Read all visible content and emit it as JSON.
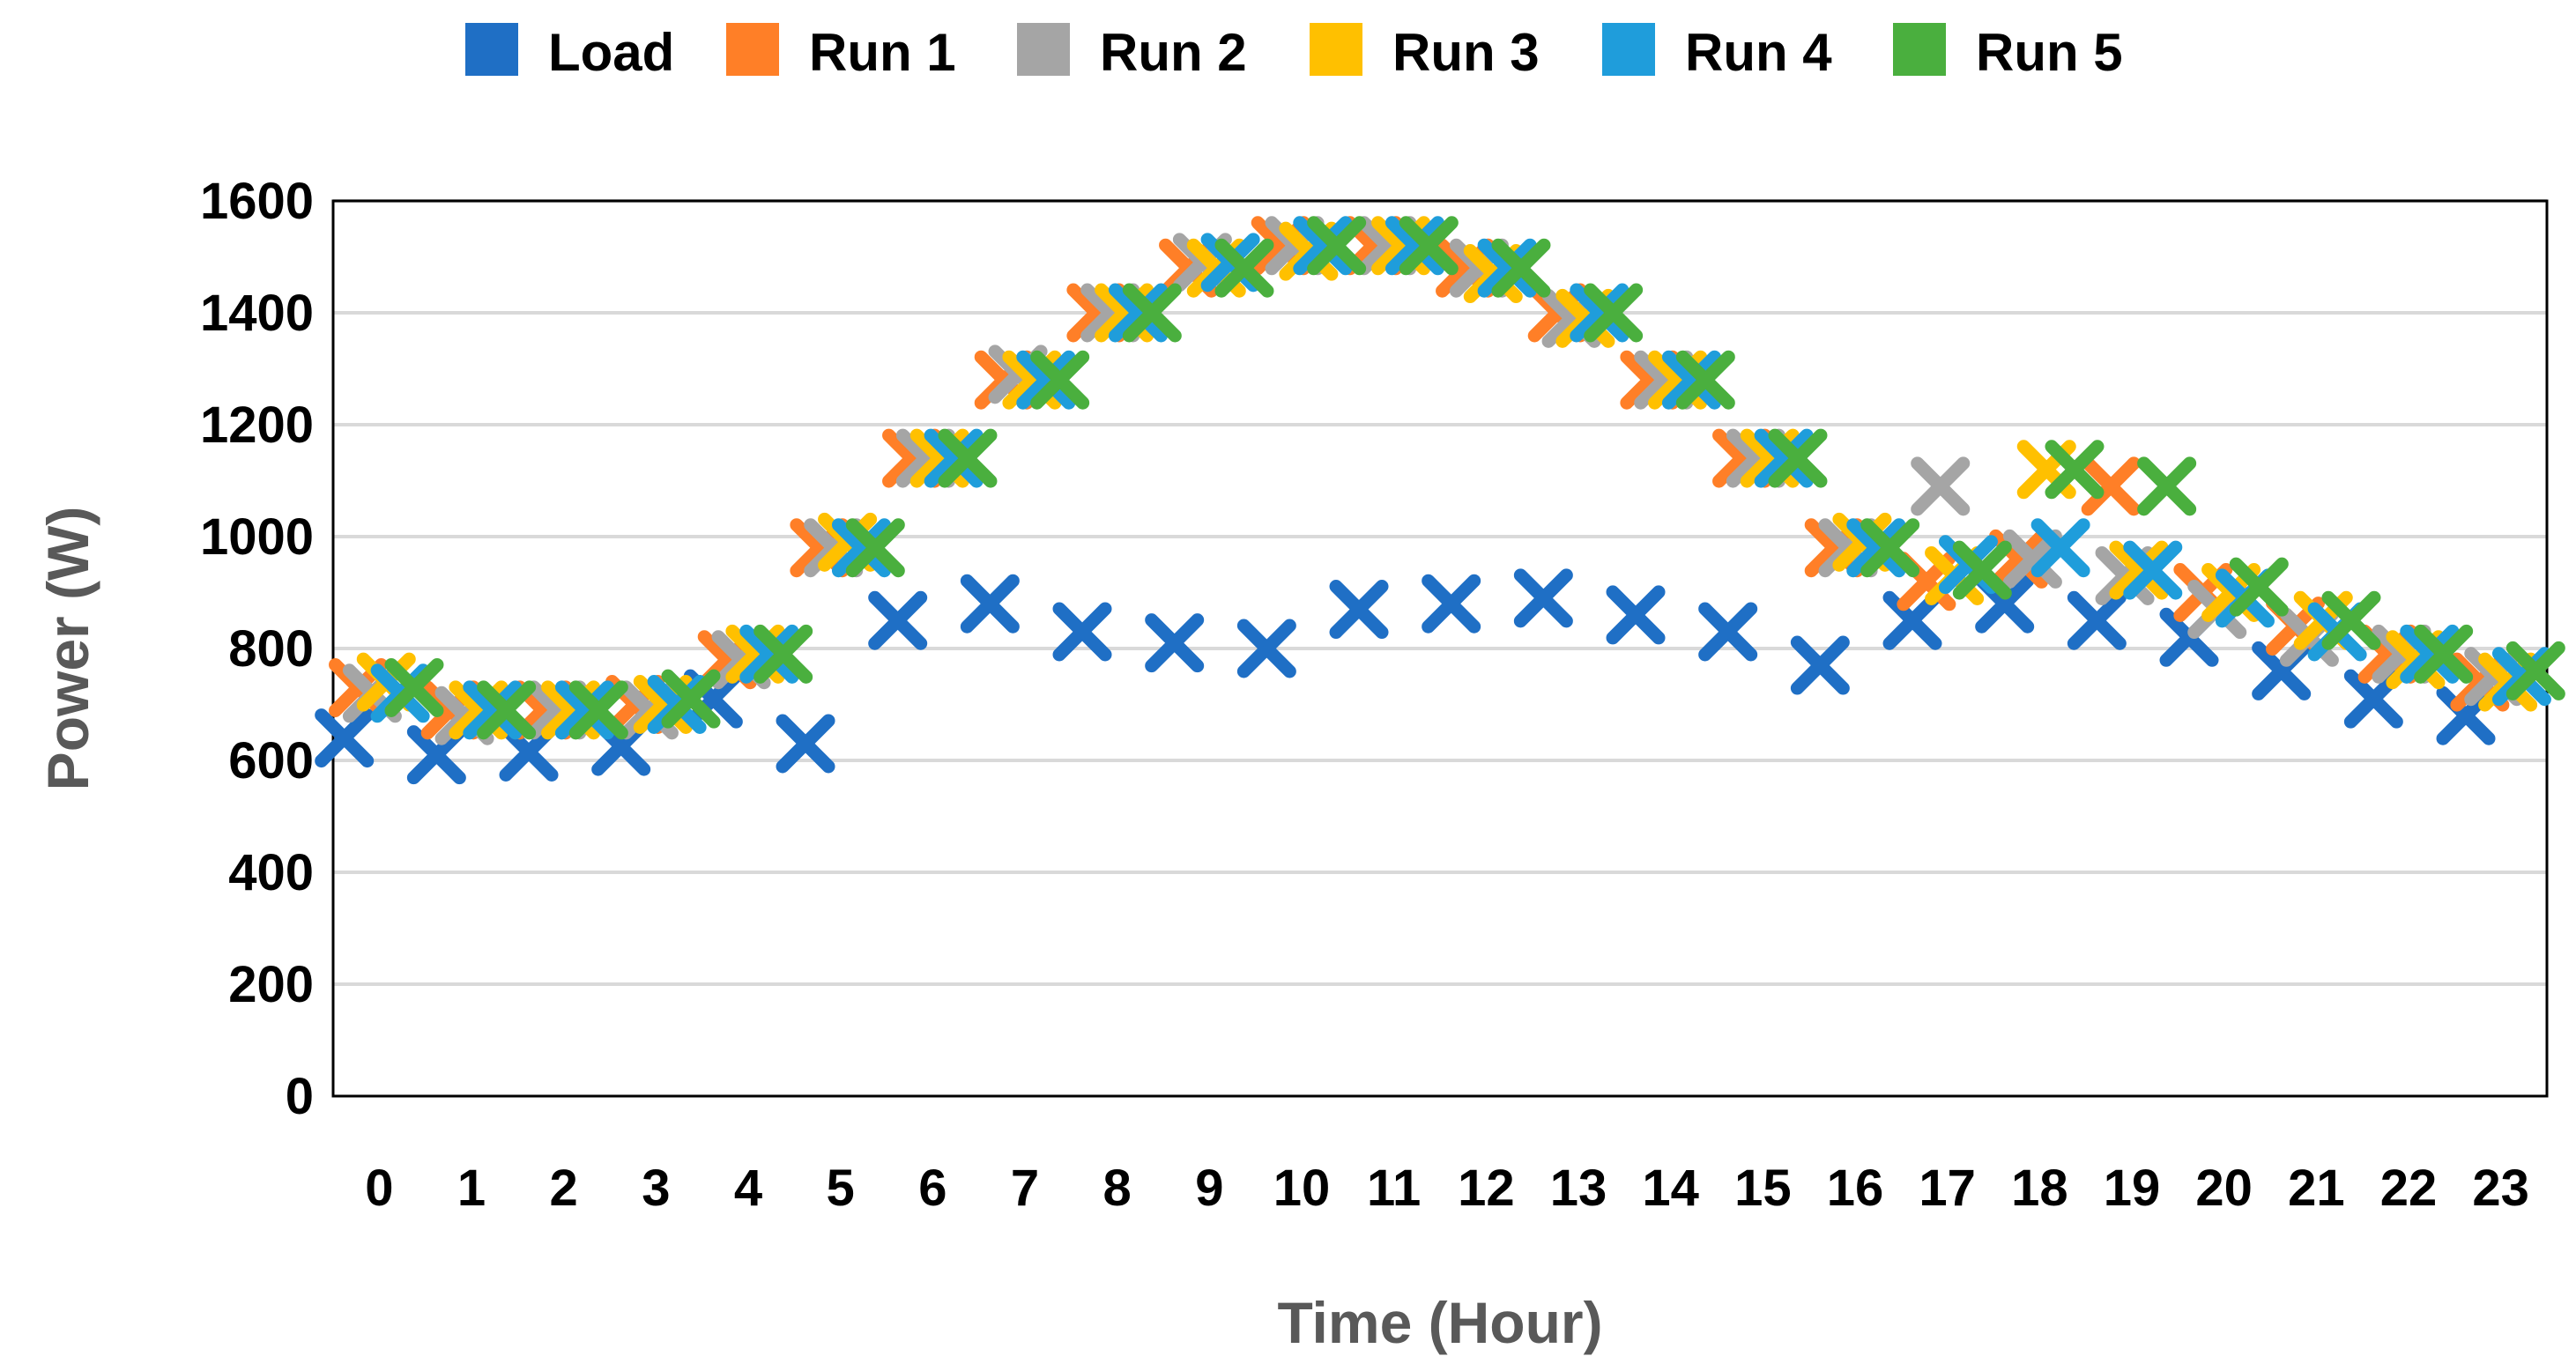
{
  "chart_data": {
    "type": "scatter",
    "title": "",
    "xlabel": "Time (Hour)",
    "ylabel": "Power (W)",
    "xlim": [
      0,
      23
    ],
    "ylim": [
      0,
      1600
    ],
    "yticks": [
      0,
      200,
      400,
      600,
      800,
      1000,
      1200,
      1400,
      1600
    ],
    "categories": [
      "0",
      "1",
      "2",
      "3",
      "4",
      "5",
      "6",
      "7",
      "8",
      "9",
      "10",
      "11",
      "12",
      "13",
      "14",
      "15",
      "16",
      "17",
      "18",
      "19",
      "20",
      "21",
      "22",
      "23"
    ],
    "grid": true,
    "legend_position": "top",
    "marker": "x",
    "series": [
      {
        "name": "Load",
        "color": "#1F6FC5",
        "values": [
          640,
          610,
          615,
          625,
          710,
          630,
          850,
          880,
          830,
          810,
          800,
          870,
          880,
          890,
          860,
          830,
          770,
          850,
          880,
          850,
          820,
          760,
          710,
          680
        ]
      },
      {
        "name": "Run 1",
        "color": "#FF7F27",
        "values": [
          730,
          690,
          690,
          700,
          780,
          980,
          1140,
          1280,
          1400,
          1480,
          1520,
          1520,
          1480,
          1400,
          1280,
          1140,
          980,
          920,
          960,
          1090,
          900,
          840,
          790,
          740
        ]
      },
      {
        "name": "Run 2",
        "color": "#A5A5A5",
        "values": [
          720,
          680,
          690,
          690,
          780,
          980,
          1140,
          1290,
          1400,
          1490,
          1520,
          1520,
          1480,
          1390,
          1280,
          1140,
          980,
          1090,
          960,
          930,
          870,
          820,
          790,
          750
        ]
      },
      {
        "name": "Run 3",
        "color": "#FFC000",
        "values": [
          740,
          690,
          690,
          700,
          790,
          990,
          1140,
          1280,
          1400,
          1480,
          1510,
          1520,
          1470,
          1390,
          1280,
          1140,
          990,
          930,
          1120,
          940,
          900,
          850,
          780,
          740
        ]
      },
      {
        "name": "Run 4",
        "color": "#1F9DDB",
        "values": [
          720,
          690,
          690,
          700,
          790,
          980,
          1140,
          1280,
          1400,
          1490,
          1520,
          1520,
          1480,
          1400,
          1280,
          1140,
          980,
          950,
          980,
          940,
          890,
          830,
          790,
          750
        ]
      },
      {
        "name": "Run 5",
        "color": "#4AAF3E",
        "values": [
          730,
          690,
          690,
          710,
          790,
          980,
          1140,
          1280,
          1400,
          1480,
          1520,
          1520,
          1480,
          1400,
          1280,
          1140,
          980,
          940,
          1120,
          1090,
          910,
          850,
          790,
          760
        ]
      }
    ]
  }
}
